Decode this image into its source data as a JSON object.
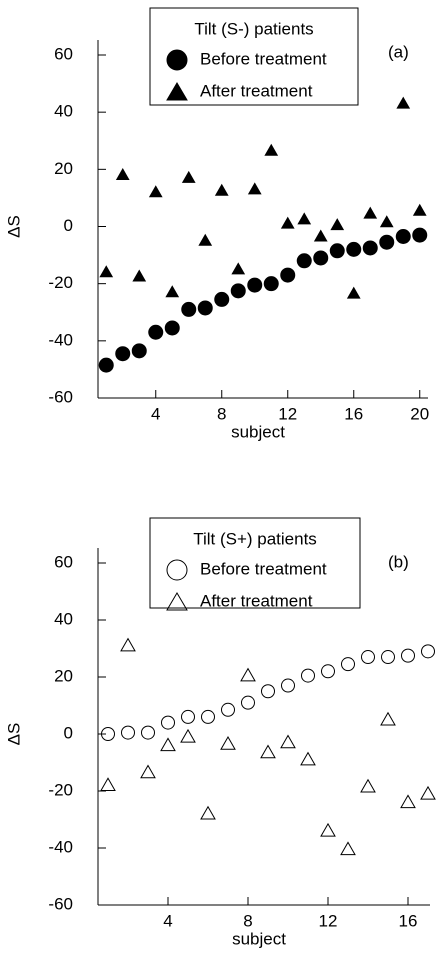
{
  "chart_data": [
    {
      "type": "scatter",
      "annotation": "(a)",
      "legend_title": "Tilt (S-) patients",
      "x_label": "subject",
      "y_label": "ΔS",
      "x": [
        1,
        2,
        3,
        4,
        5,
        6,
        7,
        8,
        9,
        10,
        11,
        12,
        13,
        14,
        15,
        16,
        17,
        18,
        19,
        20
      ],
      "series": [
        {
          "name": "Before treatment",
          "color": "#000000",
          "marker": "circle",
          "filled": true,
          "values": [
            -48.5,
            -44.5,
            -43.5,
            -37,
            -35.5,
            -29,
            -28.5,
            -25.5,
            -22.5,
            -20.5,
            -20,
            -17,
            -12,
            -11,
            -8.5,
            -8,
            -7.5,
            -5.5,
            -3.5,
            -3
          ]
        },
        {
          "name": "After treatment",
          "color": "#000000",
          "marker": "triangle",
          "filled": true,
          "values": [
            -16,
            18,
            -17.5,
            12,
            -23,
            17,
            -5,
            12.5,
            -15,
            13,
            26.5,
            1,
            2.5,
            -3.5,
            0.5,
            -23.5,
            4.5,
            1.5,
            43,
            5.5
          ]
        }
      ],
      "xlim": [
        0.5,
        20.5
      ],
      "xticks": [
        4,
        8,
        12,
        16,
        20
      ],
      "ylim": [
        -60,
        60
      ],
      "yticks": [
        -60,
        -40,
        -20,
        0,
        20,
        40,
        60
      ]
    },
    {
      "type": "scatter",
      "annotation": "(b)",
      "legend_title": "Tilt (S+) patients",
      "x_label": "subject",
      "y_label": "ΔS",
      "x": [
        1,
        2,
        3,
        4,
        5,
        6,
        7,
        8,
        9,
        10,
        11,
        12,
        13,
        14,
        15,
        16,
        17
      ],
      "series": [
        {
          "name": "Before treatment",
          "color": "#000000",
          "marker": "circle",
          "filled": false,
          "values": [
            0,
            0.5,
            0.5,
            4,
            6,
            6,
            8.5,
            11,
            15,
            17,
            20.5,
            22,
            24.5,
            27,
            27,
            27.5,
            29
          ]
        },
        {
          "name": "After treatment",
          "color": "#000000",
          "marker": "triangle",
          "filled": false,
          "values": [
            -18,
            31,
            -13.5,
            -4,
            -1,
            -28,
            -3.5,
            20.5,
            -6.5,
            -3,
            -9,
            -34,
            -40.5,
            -18.5,
            5,
            -24,
            -21
          ]
        }
      ],
      "xlim": [
        0.5,
        17.1
      ],
      "xticks": [
        4,
        8,
        12,
        16
      ],
      "ylim": [
        -60,
        60
      ],
      "yticks": [
        -60,
        -40,
        -20,
        0,
        20,
        40,
        60
      ]
    }
  ]
}
